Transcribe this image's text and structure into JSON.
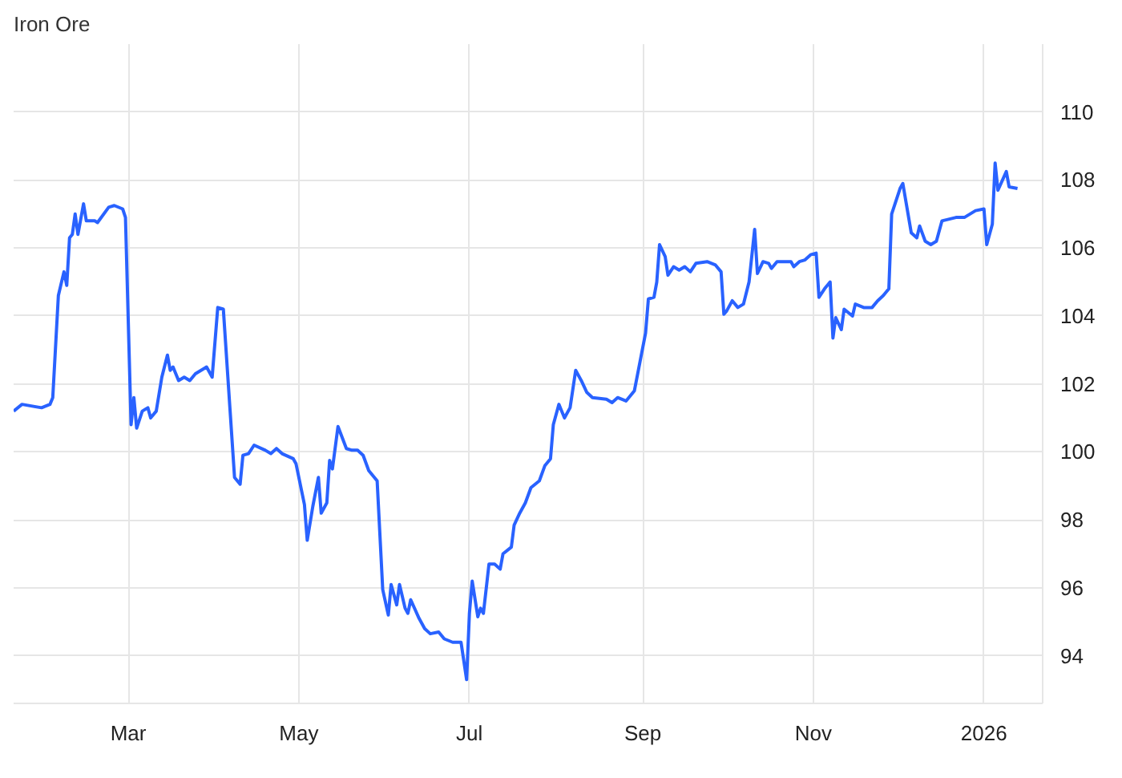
{
  "chart_data": {
    "type": "line",
    "title": "Iron Ore",
    "x": [
      "2025-01-19",
      "2025-01-22",
      "2025-01-29",
      "2025-02-01",
      "2025-02-02",
      "2025-02-04",
      "2025-02-06",
      "2025-02-07",
      "2025-02-08",
      "2025-02-09",
      "2025-02-10",
      "2025-02-11",
      "2025-02-13",
      "2025-02-14",
      "2025-02-17",
      "2025-02-18",
      "2025-02-22",
      "2025-02-24",
      "2025-02-27",
      "2025-02-28",
      "2025-03-02",
      "2025-03-03",
      "2025-03-04",
      "2025-03-06",
      "2025-03-08",
      "2025-03-09",
      "2025-03-11",
      "2025-03-13",
      "2025-03-15",
      "2025-03-16",
      "2025-03-17",
      "2025-03-19",
      "2025-03-21",
      "2025-03-23",
      "2025-03-25",
      "2025-03-29",
      "2025-03-31",
      "2025-04-02",
      "2025-04-04",
      "2025-04-08",
      "2025-04-10",
      "2025-04-11",
      "2025-04-13",
      "2025-04-15",
      "2025-04-19",
      "2025-04-21",
      "2025-04-23",
      "2025-04-25",
      "2025-04-29",
      "2025-04-30",
      "2025-05-03",
      "2025-05-04",
      "2025-05-06",
      "2025-05-08",
      "2025-05-09",
      "2025-05-11",
      "2025-05-12",
      "2025-05-13",
      "2025-05-15",
      "2025-05-18",
      "2025-05-20",
      "2025-05-22",
      "2025-05-24",
      "2025-05-26",
      "2025-05-29",
      "2025-05-31",
      "2025-06-02",
      "2025-06-03",
      "2025-06-05",
      "2025-06-06",
      "2025-06-08",
      "2025-06-09",
      "2025-06-10",
      "2025-06-13",
      "2025-06-15",
      "2025-06-17",
      "2025-06-20",
      "2025-06-22",
      "2025-06-25",
      "2025-06-28",
      "2025-06-30",
      "2025-07-01",
      "2025-07-02",
      "2025-07-04",
      "2025-07-05",
      "2025-07-06",
      "2025-07-08",
      "2025-07-10",
      "2025-07-12",
      "2025-07-13",
      "2025-07-16",
      "2025-07-17",
      "2025-07-19",
      "2025-07-21",
      "2025-07-23",
      "2025-07-26",
      "2025-07-28",
      "2025-07-30",
      "2025-07-31",
      "2025-08-02",
      "2025-08-04",
      "2025-08-06",
      "2025-08-08",
      "2025-08-10",
      "2025-08-12",
      "2025-08-14",
      "2025-08-19",
      "2025-08-21",
      "2025-08-23",
      "2025-08-26",
      "2025-08-29",
      "2025-08-31",
      "2025-09-02",
      "2025-09-03",
      "2025-09-05",
      "2025-09-06",
      "2025-09-07",
      "2025-09-09",
      "2025-09-10",
      "2025-09-12",
      "2025-09-14",
      "2025-09-16",
      "2025-09-18",
      "2025-09-20",
      "2025-09-24",
      "2025-09-27",
      "2025-09-29",
      "2025-09-30",
      "2025-10-01",
      "2025-10-03",
      "2025-10-05",
      "2025-10-07",
      "2025-10-09",
      "2025-10-11",
      "2025-10-12",
      "2025-10-14",
      "2025-10-16",
      "2025-10-17",
      "2025-10-19",
      "2025-10-24",
      "2025-10-25",
      "2025-10-27",
      "2025-10-29",
      "2025-10-31",
      "2025-11-02",
      "2025-11-03",
      "2025-11-05",
      "2025-11-07",
      "2025-11-08",
      "2025-11-09",
      "2025-11-11",
      "2025-11-12",
      "2025-11-15",
      "2025-11-16",
      "2025-11-19",
      "2025-11-22",
      "2025-11-24",
      "2025-11-26",
      "2025-11-28",
      "2025-11-29",
      "2025-12-02",
      "2025-12-03",
      "2025-12-06",
      "2025-12-08",
      "2025-12-09",
      "2025-12-11",
      "2025-12-13",
      "2025-12-15",
      "2025-12-17",
      "2025-12-22",
      "2025-12-25",
      "2025-12-29",
      "2026-01-01",
      "2026-01-02",
      "2026-01-04",
      "2026-01-05",
      "2026-01-06",
      "2026-01-09",
      "2026-01-10",
      "2026-01-13"
    ],
    "series": [
      {
        "color": "#2962ff",
        "values": [
          101.2,
          101.4,
          101.3,
          101.4,
          101.6,
          104.6,
          105.3,
          104.9,
          106.3,
          106.4,
          107.0,
          106.4,
          107.3,
          106.8,
          106.8,
          106.75,
          107.2,
          107.25,
          107.15,
          106.9,
          100.8,
          101.6,
          100.7,
          101.2,
          101.3,
          101.0,
          101.2,
          102.2,
          102.85,
          102.4,
          102.5,
          102.1,
          102.2,
          102.1,
          102.3,
          102.5,
          102.2,
          104.25,
          104.2,
          99.25,
          99.05,
          99.9,
          99.95,
          100.2,
          100.05,
          99.95,
          100.1,
          99.95,
          99.8,
          99.65,
          98.45,
          97.4,
          98.4,
          99.25,
          98.2,
          98.5,
          99.75,
          99.5,
          100.75,
          100.1,
          100.05,
          100.05,
          99.9,
          99.45,
          99.15,
          95.95,
          95.2,
          96.1,
          95.5,
          96.1,
          95.4,
          95.25,
          95.65,
          95.1,
          94.8,
          94.65,
          94.7,
          94.5,
          94.4,
          94.4,
          93.3,
          95.25,
          96.2,
          95.15,
          95.4,
          95.25,
          96.7,
          96.7,
          96.55,
          97.0,
          97.2,
          97.85,
          98.2,
          98.5,
          98.95,
          99.15,
          99.6,
          99.8,
          100.8,
          101.4,
          101.0,
          101.3,
          102.4,
          102.1,
          101.75,
          101.6,
          101.55,
          101.45,
          101.6,
          101.5,
          101.8,
          102.65,
          103.5,
          104.5,
          104.55,
          105.0,
          106.1,
          105.75,
          105.2,
          105.45,
          105.35,
          105.45,
          105.3,
          105.55,
          105.6,
          105.5,
          105.3,
          104.05,
          104.15,
          104.45,
          104.25,
          104.35,
          105.0,
          106.55,
          105.25,
          105.6,
          105.55,
          105.4,
          105.6,
          105.6,
          105.45,
          105.6,
          105.65,
          105.8,
          105.85,
          104.55,
          104.8,
          105.0,
          103.35,
          103.95,
          103.6,
          104.2,
          104.0,
          104.35,
          104.25,
          104.25,
          104.45,
          104.6,
          104.8,
          107.0,
          107.75,
          107.9,
          106.45,
          106.3,
          106.65,
          106.2,
          106.1,
          106.2,
          106.8,
          106.9,
          106.9,
          107.1,
          107.15,
          106.1,
          106.7,
          108.5,
          107.7,
          108.25,
          107.8,
          107.75
        ]
      }
    ],
    "xlim": [
      "2025-01-19",
      "2026-01-22"
    ],
    "xticks": [
      {
        "value": "2025-03-01",
        "label": "Mar"
      },
      {
        "value": "2025-05-01",
        "label": "May"
      },
      {
        "value": "2025-07-01",
        "label": "Jul"
      },
      {
        "value": "2025-09-01",
        "label": "Sep"
      },
      {
        "value": "2025-11-01",
        "label": "Nov"
      },
      {
        "value": "2026-01-01",
        "label": "2026"
      }
    ],
    "ylim": [
      92.6,
      112
    ],
    "yticks": [
      94,
      96,
      98,
      100,
      102,
      104,
      106,
      108,
      110
    ],
    "grid": true,
    "line_style": "solid",
    "marker": "none"
  }
}
